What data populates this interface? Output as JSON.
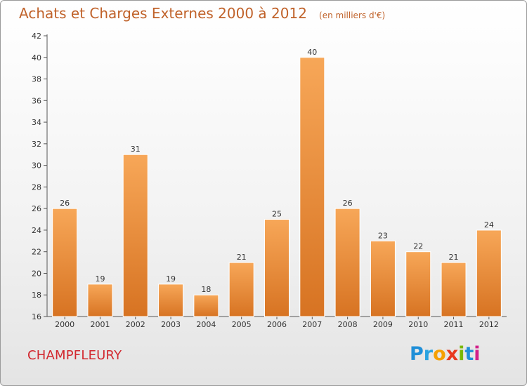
{
  "header": {
    "title": "Achats et Charges Externes 2000 à 2012",
    "unit_note": "(en milliers d'€)"
  },
  "footer": {
    "place_name": "CHAMPFLEURY",
    "logo_letters": [
      "P",
      "r",
      "o",
      "x",
      "i",
      "t",
      "i"
    ],
    "logo_colors": [
      "#1f8fd8",
      "#2aa3e0",
      "#f5a000",
      "#e8381e",
      "#7ab800",
      "#1f8fd8",
      "#d21f8a"
    ]
  },
  "chart_data": {
    "type": "bar",
    "title": "Achats et Charges Externes 2000 à 2012",
    "subtitle": "(en milliers d'€)",
    "xlabel": "",
    "ylabel": "",
    "categories": [
      "2000",
      "2001",
      "2002",
      "2003",
      "2004",
      "2005",
      "2006",
      "2007",
      "2008",
      "2009",
      "2010",
      "2011",
      "2012"
    ],
    "values": [
      26,
      19,
      31,
      19,
      18,
      21,
      25,
      40,
      26,
      23,
      22,
      21,
      24
    ],
    "ylim": [
      16,
      42
    ],
    "yticks": [
      16,
      18,
      20,
      22,
      24,
      26,
      28,
      30,
      32,
      34,
      36,
      38,
      40,
      42
    ],
    "grid": false,
    "bar_color_light": "#f7a758",
    "bar_color_dark": "#d77322",
    "axis_color": "#555555"
  }
}
